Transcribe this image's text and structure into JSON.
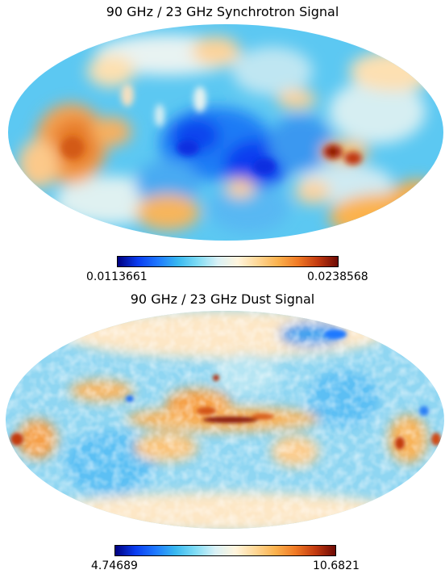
{
  "panels": [
    {
      "title": "90 GHz / 23 GHz Synchrotron Signal",
      "colorbar": {
        "min_label": "0.0113661",
        "max_label": "0.0238568",
        "min": 0.0113661,
        "max": 0.0238568
      }
    },
    {
      "title": "90 GHz / 23 GHz Dust Signal",
      "colorbar": {
        "min_label": "4.74689",
        "max_label": "10.6821",
        "min": 4.74689,
        "max": 10.6821
      }
    }
  ],
  "colors": {
    "colormap": [
      "#00007f",
      "#0a3cf0",
      "#1e78ff",
      "#38b8f0",
      "#7fdcf5",
      "#d9f1f6",
      "#fff5dd",
      "#fed796",
      "#fbb24e",
      "#f07a25",
      "#c33a10",
      "#6e0a05"
    ],
    "background": "#ffffff"
  }
}
